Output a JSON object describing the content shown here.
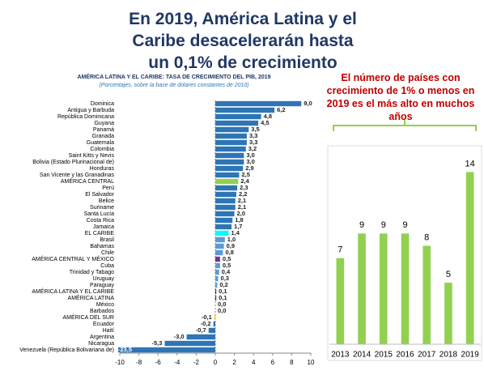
{
  "title": "En 2019, América Latina y el Caribe desacelerarán hasta un 0,1% de crecimiento",
  "chart_data": [
    {
      "type": "barh",
      "title": "AMÉRICA LATINA Y EL CARIBE: TASA DE CRECIMIENTO DEL PIB, 2019",
      "subtitle": "(Porcentajes, sobre la base de dólares constantes de 2010)",
      "categories": [
        "Dominica",
        "Antigua y Barbuda",
        "República Dominicana",
        "Guyana",
        "Panamá",
        "Granada",
        "Guatemala",
        "Colombia",
        "Saint Kitts y Nevis",
        "Bolivia (Estado Plurinacional de)",
        "Honduras",
        "San Vicente y las Granadinas",
        "AMÉRICA CENTRAL",
        "Perú",
        "El Salvador",
        "Belice",
        "Suriname",
        "Santa Lucía",
        "Costa Rica",
        "Jamaica",
        "EL CARIBE",
        "Brasil",
        "Bahamas",
        "Chile",
        "AMÉRICA CENTRAL Y MÉXICO",
        "Cuba",
        "Trinidad y Tabago",
        "Uruguay",
        "Paraguay",
        "AMÉRICA LATINA Y EL CARIBE",
        "AMÉRICA LATINA",
        "México",
        "Barbados",
        "AMÉRICA DEL SUR",
        "Ecuador",
        "Haití",
        "Argentina",
        "Nicaragua",
        "Venezuela (República Bolivariana de)"
      ],
      "values": [
        9.0,
        6.2,
        4.8,
        4.5,
        3.5,
        3.3,
        3.3,
        3.2,
        3.0,
        3.0,
        2.9,
        2.5,
        2.4,
        2.3,
        2.2,
        2.1,
        2.1,
        2.0,
        1.8,
        1.7,
        1.4,
        1.0,
        0.9,
        0.8,
        0.5,
        0.5,
        0.4,
        0.3,
        0.2,
        0.1,
        0.1,
        0.0,
        0.0,
        -0.1,
        -0.2,
        -0.7,
        -3.0,
        -5.3,
        -23.5
      ],
      "value_labels": [
        "9,0",
        "6,2",
        "4,8",
        "4,5",
        "3,5",
        "3,3",
        "3,3",
        "3,2",
        "3,0",
        "3,0",
        "2,9",
        "2,5",
        "2,4",
        "2,3",
        "2,2",
        "2,1",
        "2,1",
        "2,0",
        "1,8",
        "1,7",
        "1,4",
        "1,0",
        "0,9",
        "0,8",
        "0,5",
        "0,5",
        "0,4",
        "0,3",
        "0,2",
        "0,1",
        "0,1",
        "0,0",
        "0,0",
        "-0,1",
        "-0,2",
        "-0,7",
        "-3,0",
        "-5,3",
        "-23,5"
      ],
      "colors": [
        "#2e75b6",
        "#2e75b6",
        "#2e75b6",
        "#2e75b6",
        "#2e75b6",
        "#2e75b6",
        "#2e75b6",
        "#2e75b6",
        "#2e75b6",
        "#2e75b6",
        "#2e75b6",
        "#2e75b6",
        "#92d050",
        "#2e75b6",
        "#2e75b6",
        "#2e75b6",
        "#2e75b6",
        "#2e75b6",
        "#2e75b6",
        "#2e75b6",
        "#00ffff",
        "#5b9bd5",
        "#5b9bd5",
        "#5b9bd5",
        "#7030a0",
        "#5b9bd5",
        "#5b9bd5",
        "#5b9bd5",
        "#5b9bd5",
        "#1f3864",
        "#1f3864",
        "#5b9bd5",
        "#5b9bd5",
        "#ffc000",
        "#2e75b6",
        "#2e75b6",
        "#2e75b6",
        "#2e75b6",
        "#2e75b6"
      ],
      "xlim": [
        -10,
        10
      ],
      "xticks": [
        -10,
        -8,
        -6,
        -4,
        -2,
        0,
        2,
        4,
        6,
        8,
        10
      ]
    },
    {
      "type": "bar",
      "title": "El número de países con crecimiento de 1% o menos en 2019 es el más alto en muchos años",
      "categories": [
        "2013",
        "2014",
        "2015",
        "2016",
        "2017",
        "2018",
        "2019"
      ],
      "values": [
        7,
        9,
        9,
        9,
        8,
        5,
        14
      ],
      "color": "#92d050",
      "ylim": [
        0,
        16
      ]
    }
  ]
}
